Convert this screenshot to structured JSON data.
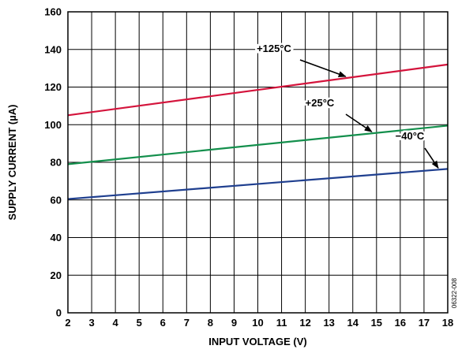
{
  "chart_data": {
    "type": "line",
    "title": "",
    "xlabel": "INPUT VOLTAGE (V)",
    "ylabel": "SUPPLY CURRENT (µA)",
    "xlim": [
      2,
      18
    ],
    "ylim": [
      0,
      160
    ],
    "x_ticks": [
      2,
      3,
      4,
      5,
      6,
      7,
      8,
      9,
      10,
      11,
      12,
      13,
      14,
      15,
      16,
      17,
      18
    ],
    "y_ticks": [
      0,
      20,
      40,
      60,
      80,
      100,
      120,
      140,
      160
    ],
    "grid": true,
    "legend": "none",
    "series": [
      {
        "name": "+125°C",
        "color": "#d4143c",
        "x": [
          2,
          18
        ],
        "y": [
          105,
          132
        ]
      },
      {
        "name": "+25°C",
        "color": "#138f4c",
        "x": [
          2,
          18
        ],
        "y": [
          79,
          99.5
        ]
      },
      {
        "name": "−40°C",
        "color": "#1f3f8f",
        "x": [
          2,
          18
        ],
        "y": [
          60.5,
          76.5
        ]
      }
    ],
    "annotations": [
      {
        "text": "+125°C",
        "series": 0,
        "arrow_to_x": 13.7
      },
      {
        "text": "+25°C",
        "series": 1,
        "arrow_to_x": 14.8
      },
      {
        "text": "−40°C",
        "series": 2,
        "arrow_to_x": 17.6
      }
    ],
    "figure_id": "06322-008"
  }
}
